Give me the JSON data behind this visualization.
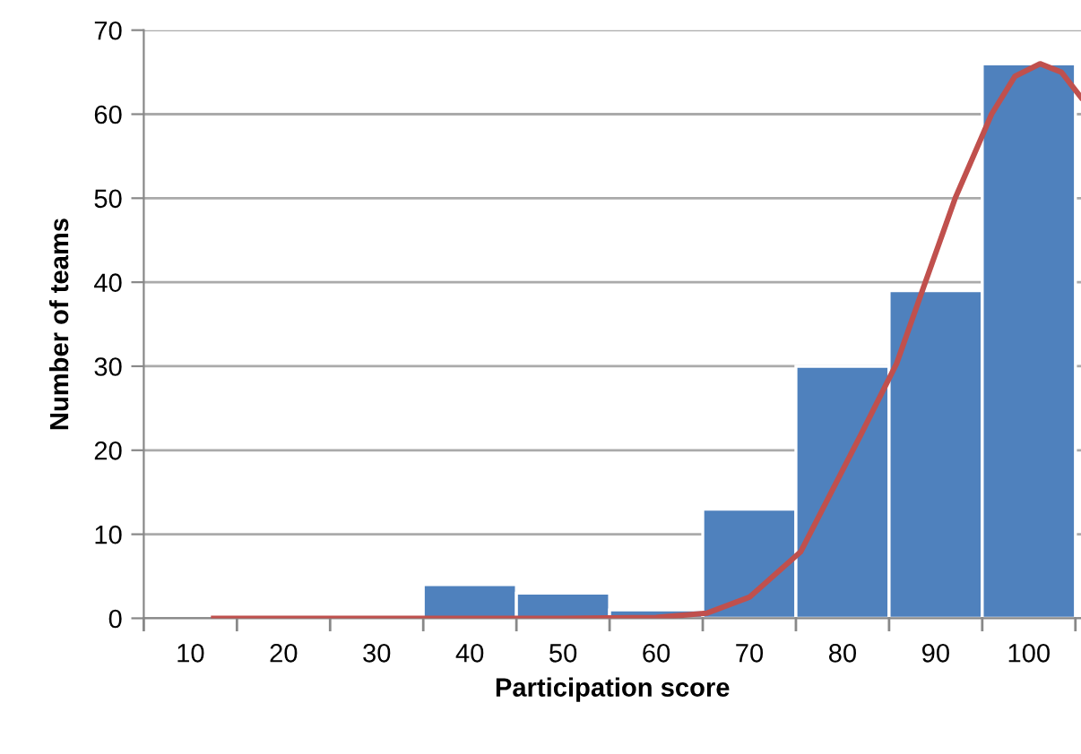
{
  "chart_data": {
    "type": "histogram",
    "xlabel": "Participation score",
    "ylabel": "Number of teams",
    "bins": [
      35,
      45,
      55,
      65,
      75,
      85,
      95,
      105
    ],
    "values": [
      4,
      3,
      1,
      13,
      30,
      39,
      66
    ],
    "color": "#4f81bd",
    "series": [
      {
        "type": "line",
        "color": "#c0504d",
        "x": [
          12.5,
          30,
          50,
          60,
          65.4,
          70,
          75.5,
          81.9,
          85.8,
          88.7,
          92.1,
          96,
          98.5,
          101.2,
          103.5,
          105.6
        ],
        "values": [
          0,
          0,
          0,
          0.1,
          0.6,
          2.5,
          7.9,
          21.7,
          30.3,
          39.4,
          50,
          60,
          64.5,
          66,
          65,
          62
        ]
      }
    ],
    "xlim": [
      5,
      105.6
    ],
    "ylim": [
      0,
      70
    ],
    "xticks": [
      {
        "value": 5,
        "label": null
      },
      {
        "value": 10,
        "label": "10"
      },
      {
        "value": 15,
        "label": null
      },
      {
        "value": 20,
        "label": "20"
      },
      {
        "value": 25,
        "label": null
      },
      {
        "value": 30,
        "label": "30"
      },
      {
        "value": 35,
        "label": null
      },
      {
        "value": 40,
        "label": "40"
      },
      {
        "value": 45,
        "label": null
      },
      {
        "value": 50,
        "label": "50"
      },
      {
        "value": 55,
        "label": null
      },
      {
        "value": 60,
        "label": "60"
      },
      {
        "value": 65,
        "label": null
      },
      {
        "value": 70,
        "label": "70"
      },
      {
        "value": 75,
        "label": null
      },
      {
        "value": 80,
        "label": "80"
      },
      {
        "value": 85,
        "label": null
      },
      {
        "value": 90,
        "label": "90"
      },
      {
        "value": 95,
        "label": null
      },
      {
        "value": 100,
        "label": "100"
      },
      {
        "value": 105,
        "label": null
      }
    ],
    "yticks": [
      0,
      10,
      20,
      30,
      40,
      50,
      60,
      70
    ],
    "grid": "y"
  }
}
